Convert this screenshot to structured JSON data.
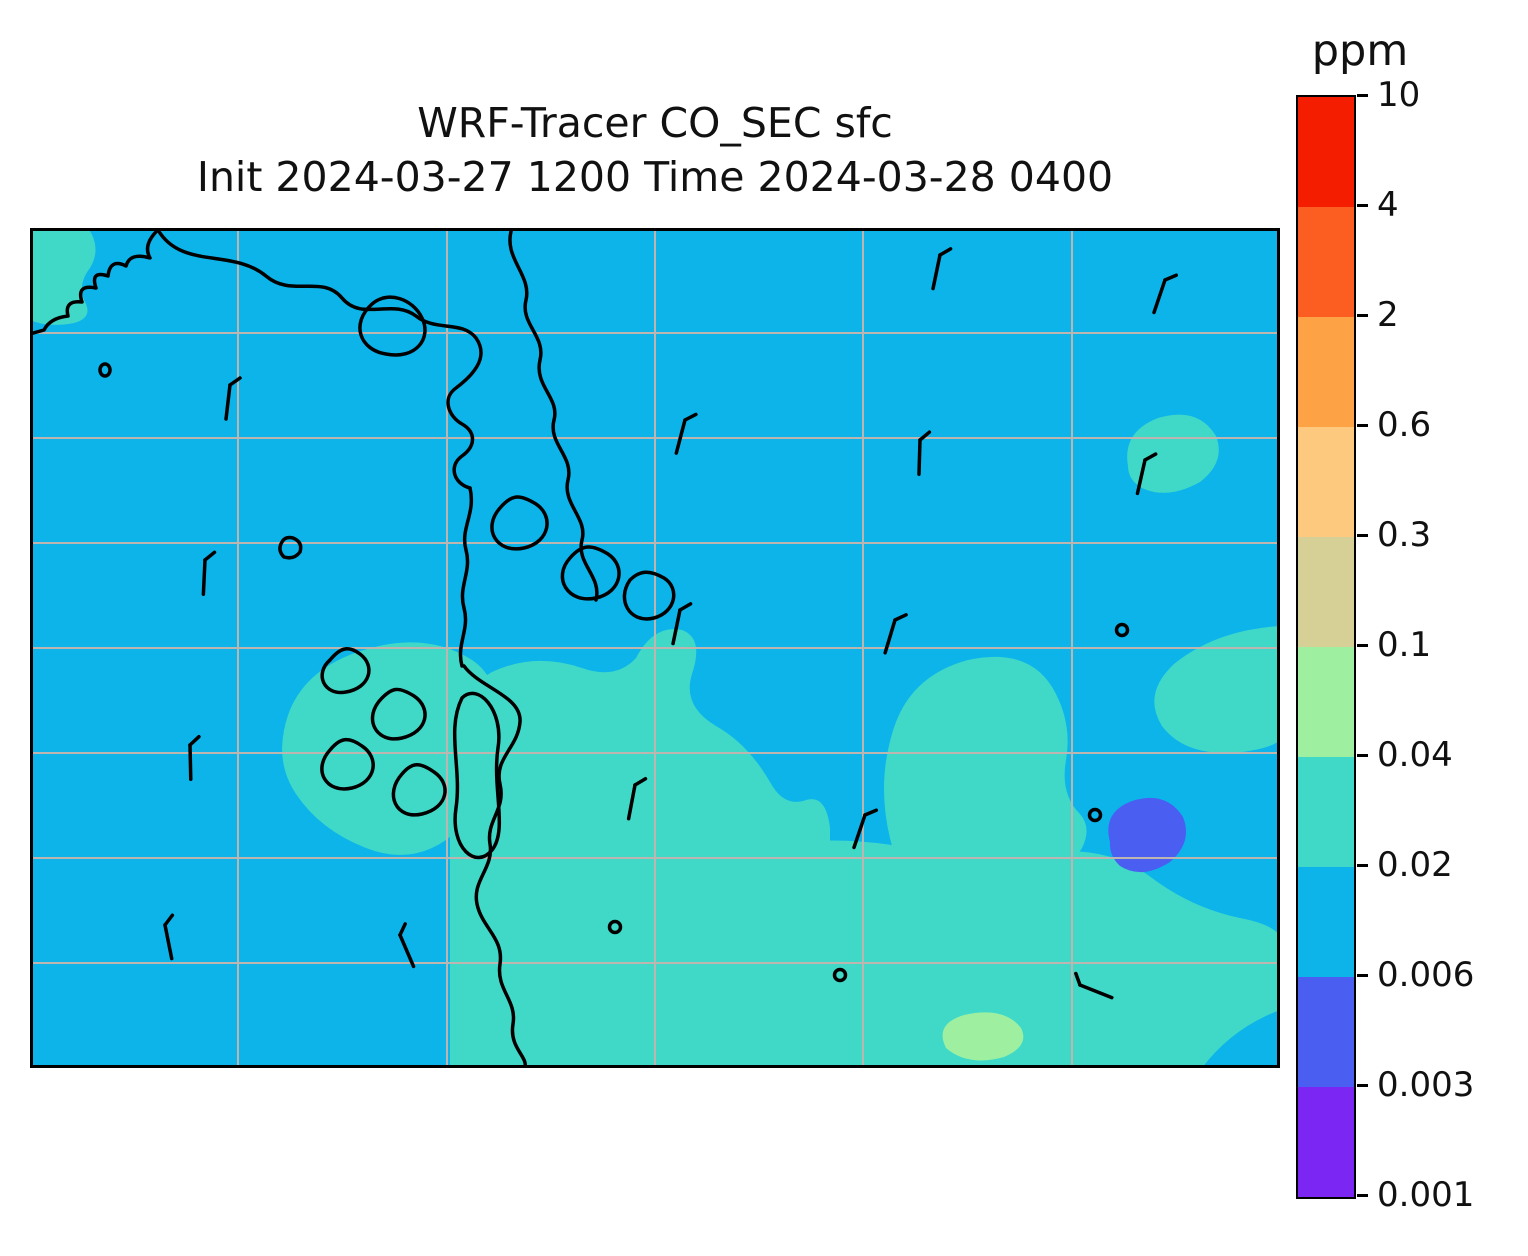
{
  "title": {
    "line1": "WRF-Tracer CO_SEC sfc",
    "line2": "Init 2024-03-27 1200 Time 2024-03-28 0400"
  },
  "colorbar": {
    "unit_label": "ppm",
    "ticks": [
      "10",
      "4",
      "2",
      "0.6",
      "0.3",
      "0.1",
      "0.04",
      "0.02",
      "0.006",
      "0.003",
      "0.001"
    ],
    "bands_top_to_bottom": [
      "#f51d00",
      "#fc5e21",
      "#fda245",
      "#fdc97e",
      "#d6d096",
      "#9ef0a0",
      "#40d9c8",
      "#0cb4ea",
      "#4a5ff2",
      "#7b26f2"
    ]
  },
  "map_colors": {
    "background": "#0cb4ea",
    "band_02_04": "#40d9c8",
    "band_004_01": "#9ef0a0",
    "band_0003_0006": "#4a5ff2"
  },
  "chart_data": {
    "type": "heatmap",
    "title": "WRF-Tracer CO_SEC sfc",
    "subtitle": "Init 2024-03-27 1200 Time 2024-03-28 0400",
    "variable": "CO_SEC",
    "level": "sfc",
    "units": "ppm",
    "init_time": "2024-03-27 1200",
    "valid_time": "2024-03-28 0400",
    "contour_levels_ppm": [
      0.001,
      0.003,
      0.006,
      0.02,
      0.04,
      0.1,
      0.3,
      0.6,
      2,
      4,
      10
    ],
    "band_colors_low_to_high": [
      "#7b26f2",
      "#4a5ff2",
      "#0cb4ea",
      "#40d9c8",
      "#9ef0a0",
      "#d6d096",
      "#fdc97e",
      "#fda245",
      "#fc5e21",
      "#f51d00"
    ],
    "field_regions": [
      {
        "band_ppm": "0.006-0.02",
        "color": "#0cb4ea",
        "coverage": "dominant background over most of the domain"
      },
      {
        "band_ppm": "0.02-0.04",
        "color": "#40d9c8",
        "coverage": "large area over lower-center and lower-right, archipelago area, top-left corner patch, small upper-right patch, right-edge patch"
      },
      {
        "band_ppm": "0.04-0.1",
        "color": "#9ef0a0",
        "coverage": "small patch near bottom center-right"
      },
      {
        "band_ppm": "0.003-0.006",
        "color": "#4a5ff2",
        "coverage": "small isolated blob center-right"
      }
    ],
    "overlays": [
      "coastlines",
      "latitude-longitude grid",
      "wind barbs",
      "calm-wind circles"
    ],
    "legend_position": "right colorbar"
  }
}
